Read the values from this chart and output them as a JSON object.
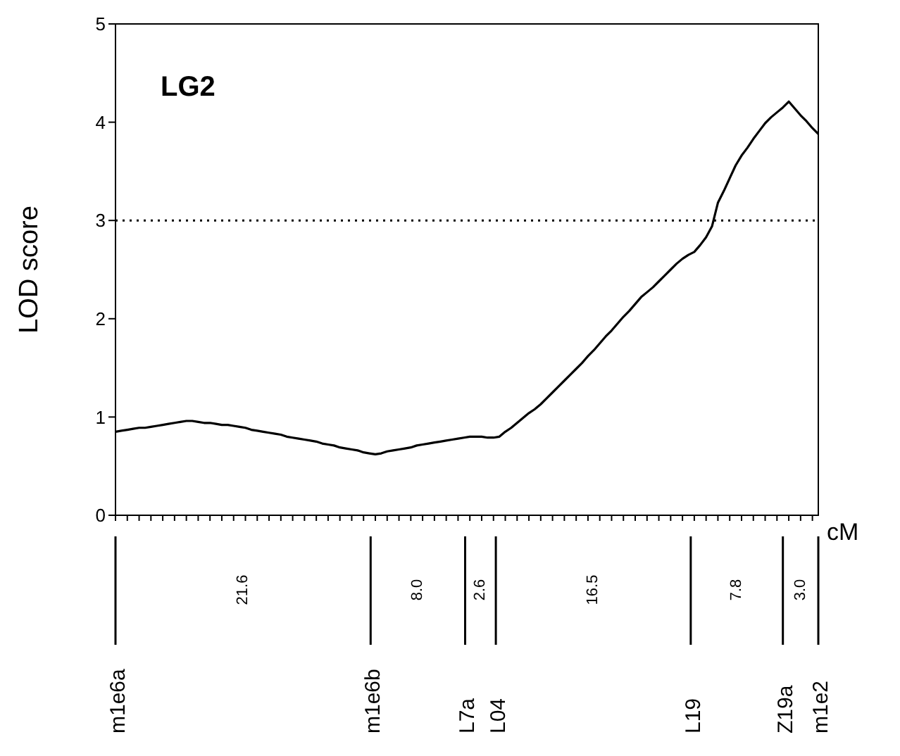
{
  "chart_data": {
    "type": "line",
    "title": "LG2",
    "xlabel": "cM",
    "ylabel": "LOD score",
    "categories": [
      null,
      null,
      null,
      null,
      null,
      null,
      null,
      null,
      null,
      null,
      null,
      null,
      null,
      null,
      null,
      null,
      null,
      null,
      null,
      null,
      null,
      null,
      null,
      null,
      null,
      null,
      null,
      null,
      null,
      null,
      null,
      null,
      null,
      null,
      null,
      null,
      null,
      null,
      null,
      null,
      null,
      null,
      null,
      null,
      null,
      null,
      null,
      null,
      null,
      null,
      null,
      null,
      null,
      null,
      null,
      null,
      null,
      null,
      null,
      null,
      null,
      null,
      null,
      null,
      null,
      null,
      null,
      null,
      null,
      null,
      null,
      null,
      null,
      null,
      null,
      null,
      null,
      null,
      null,
      null,
      null,
      null,
      null,
      null,
      null,
      null,
      null,
      null,
      null,
      null,
      null,
      null,
      null,
      null,
      null,
      null,
      null,
      null,
      null,
      null,
      null,
      null,
      null,
      null,
      null,
      null,
      null,
      null,
      null,
      null,
      null,
      null,
      null,
      null,
      null,
      null,
      null,
      null,
      null,
      null
    ],
    "series": [
      {
        "color": "#000000",
        "values": [
          0.85,
          0.86,
          0.87,
          0.88,
          0.89,
          0.89,
          0.9,
          0.91,
          0.92,
          0.93,
          0.94,
          0.95,
          0.96,
          0.96,
          0.95,
          0.94,
          0.94,
          0.93,
          0.92,
          0.92,
          0.91,
          0.9,
          0.89,
          0.87,
          0.86,
          0.85,
          0.84,
          0.83,
          0.82,
          0.8,
          0.79,
          0.78,
          0.77,
          0.76,
          0.75,
          0.73,
          0.72,
          0.71,
          0.69,
          0.68,
          0.67,
          0.66,
          0.64,
          0.63,
          0.62,
          0.63,
          0.65,
          0.66,
          0.67,
          0.68,
          0.69,
          0.71,
          0.72,
          0.73,
          0.74,
          0.75,
          0.76,
          0.77,
          0.78,
          0.79,
          0.8,
          0.8,
          0.8,
          0.79,
          0.79,
          0.8,
          0.85,
          0.89,
          0.94,
          0.99,
          1.04,
          1.08,
          1.13,
          1.19,
          1.25,
          1.31,
          1.37,
          1.43,
          1.49,
          1.55,
          1.62,
          1.68,
          1.75,
          1.82,
          1.88,
          1.95,
          2.02,
          2.08,
          2.15,
          2.22,
          2.27,
          2.32,
          2.38,
          2.44,
          2.5,
          2.56,
          2.61,
          2.65,
          2.68,
          2.75,
          2.83,
          2.94,
          3.18,
          3.3,
          3.43,
          3.56,
          3.66,
          3.74,
          3.83,
          3.91,
          3.99,
          4.05,
          4.1,
          4.15,
          4.21,
          4.14,
          4.07,
          4.01,
          3.94,
          3.88
        ]
      }
    ],
    "ylim": [
      0,
      5
    ],
    "yticks": [
      0,
      1,
      2,
      3,
      4,
      5
    ],
    "marker": "none",
    "line_style": "solid",
    "ref_lines": [
      {
        "axis": "y",
        "value": 3,
        "color": "#000000",
        "line_style": "dotted"
      }
    ],
    "annotations": [
      "m1e6a",
      "21.6",
      "m1e6b",
      "8.0",
      "L7a",
      "2.6",
      "L04",
      "16.5",
      "L19",
      "7.8",
      "Z19a",
      "3.0",
      "m1e2"
    ]
  }
}
